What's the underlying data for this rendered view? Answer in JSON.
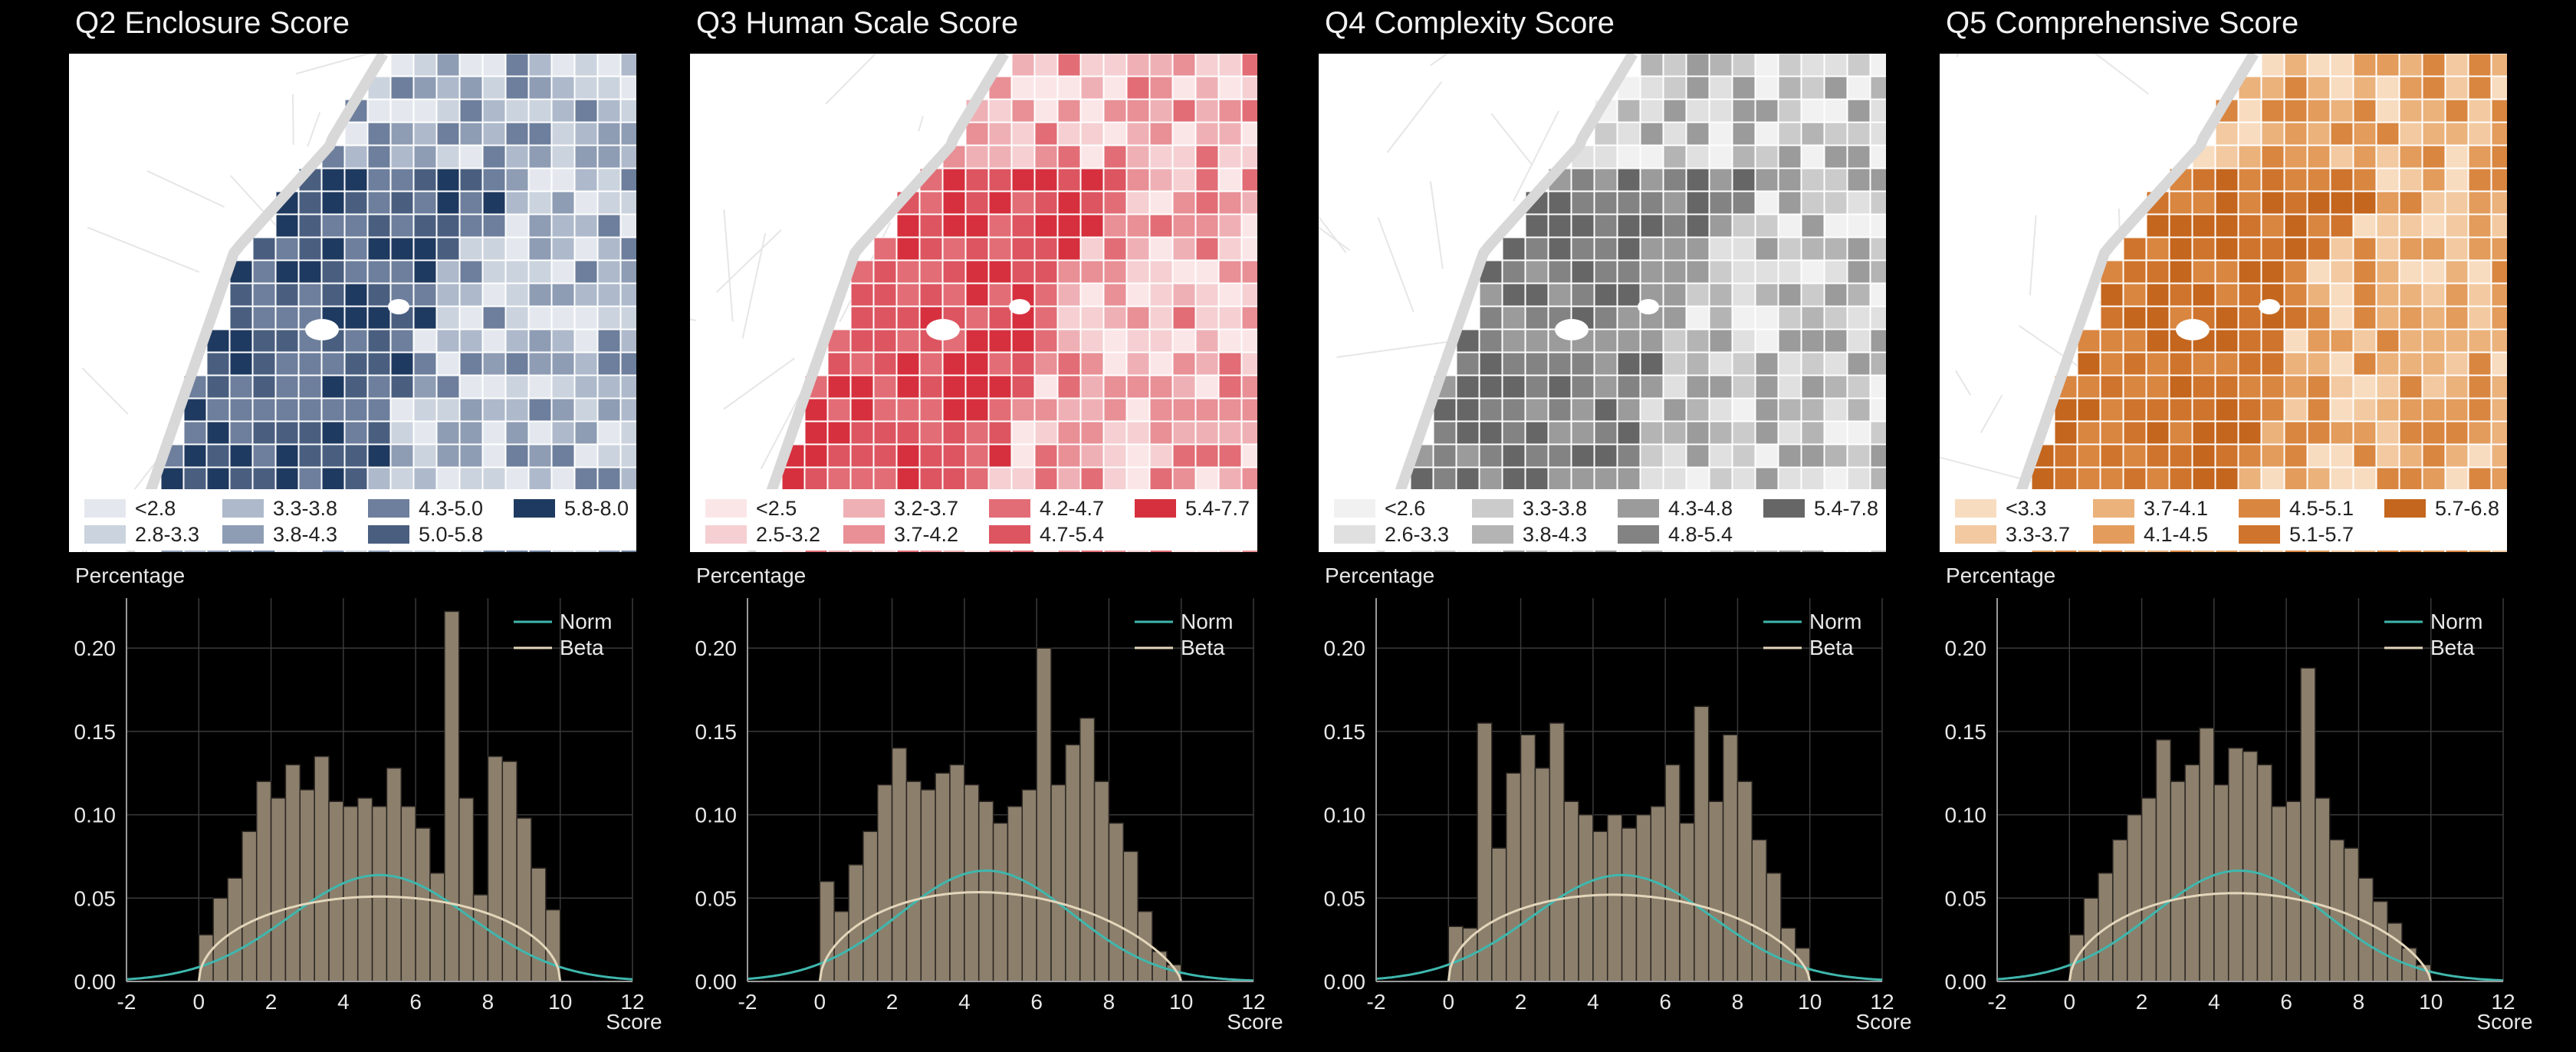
{
  "colors": {
    "norm": "#3fb7ad",
    "beta": "#e3d6bb",
    "bar_fill": "#8c7f6c",
    "bar_stroke": "#2a2622",
    "grid": "#3a3a3a",
    "axis": "#9a9a9a",
    "text": "#e8e8e8"
  },
  "panels": [
    {
      "title": "Q2 Enclosure Score",
      "map_palette": [
        "#e4e8ee",
        "#cbd3de",
        "#aebacb",
        "#8e9db4",
        "#6d7f9c",
        "#4a5f80",
        "#1f3a60"
      ],
      "legend": [
        "<2.8",
        "2.8-3.3",
        "3.3-3.8",
        "3.8-4.3",
        "4.3-5.0",
        "5.0-5.8",
        "5.8-8.0"
      ]
    },
    {
      "title": "Q3 Human Scale Score",
      "map_palette": [
        "#fbe6e7",
        "#f5cfd2",
        "#efb0b5",
        "#e98f96",
        "#e26d76",
        "#dc5560",
        "#d6303e"
      ],
      "legend": [
        "<2.5",
        "2.5-3.2",
        "3.2-3.7",
        "3.7-4.2",
        "4.2-4.7",
        "4.7-5.4",
        "5.4-7.7"
      ]
    },
    {
      "title": "Q4 Complexity Score",
      "map_palette": [
        "#f1f1f1",
        "#e0e0e0",
        "#cbcbcb",
        "#b4b4b4",
        "#9b9b9b",
        "#838383",
        "#666666"
      ],
      "legend": [
        "<2.6",
        "2.6-3.3",
        "3.3-3.8",
        "3.8-4.3",
        "4.3-4.8",
        "4.8-5.4",
        "5.4-7.8"
      ]
    },
    {
      "title": "Q5 Comprehensive Score",
      "map_palette": [
        "#f8dcc0",
        "#f2c9a0",
        "#ebb27c",
        "#e39c5c",
        "#d98641",
        "#cf742d",
        "#c4661e"
      ],
      "legend": [
        "<3.3",
        "3.3-3.7",
        "3.7-4.1",
        "4.1-4.5",
        "4.5-5.1",
        "5.1-5.7",
        "5.7-6.8"
      ]
    }
  ],
  "chart_data": [
    {
      "type": "bar",
      "ylabel": "Percentage",
      "xlabel": "Score",
      "xlim": [
        -2,
        12
      ],
      "ylim": [
        0,
        0.23
      ],
      "xticks": [
        "-2",
        "0",
        "2",
        "4",
        "6",
        "8",
        "10",
        "12"
      ],
      "yticks": [
        "0.00",
        "0.05",
        "0.10",
        "0.15",
        "0.20"
      ],
      "bin_edges_start": 0,
      "bin_width": 0.4,
      "values": [
        0.028,
        0.05,
        0.062,
        0.09,
        0.12,
        0.11,
        0.13,
        0.115,
        0.135,
        0.108,
        0.105,
        0.11,
        0.105,
        0.128,
        0.105,
        0.092,
        0.065,
        0.222,
        0.11,
        0.052,
        0.135,
        0.132,
        0.098,
        0.068,
        0.043
      ],
      "series": [
        {
          "name": "Norm",
          "mean": 5.0,
          "sd": 2.5
        },
        {
          "name": "Beta",
          "a": 1.5,
          "b": 1.5,
          "low": 0,
          "high": 10
        }
      ]
    },
    {
      "type": "bar",
      "ylabel": "Percentage",
      "xlabel": "Score",
      "xlim": [
        -2,
        12
      ],
      "ylim": [
        0,
        0.23
      ],
      "xticks": [
        "-2",
        "0",
        "2",
        "4",
        "6",
        "8",
        "10",
        "12"
      ],
      "yticks": [
        "0.00",
        "0.05",
        "0.10",
        "0.15",
        "0.20"
      ],
      "bin_edges_start": 0,
      "bin_width": 0.4,
      "values": [
        0.06,
        0.042,
        0.07,
        0.09,
        0.118,
        0.14,
        0.12,
        0.115,
        0.125,
        0.13,
        0.118,
        0.108,
        0.095,
        0.105,
        0.115,
        0.2,
        0.118,
        0.142,
        0.158,
        0.12,
        0.095,
        0.078,
        0.042,
        0.018,
        0.01
      ],
      "series": [
        {
          "name": "Norm",
          "mean": 4.6,
          "sd": 2.4
        },
        {
          "name": "Beta",
          "a": 1.55,
          "b": 1.7,
          "low": 0,
          "high": 10
        }
      ]
    },
    {
      "type": "bar",
      "ylabel": "Percentage",
      "xlabel": "Score",
      "xlim": [
        -2,
        12
      ],
      "ylim": [
        0,
        0.23
      ],
      "xticks": [
        "-2",
        "0",
        "2",
        "4",
        "6",
        "8",
        "10",
        "12"
      ],
      "yticks": [
        "0.00",
        "0.05",
        "0.10",
        "0.15",
        "0.20"
      ],
      "bin_edges_start": 0,
      "bin_width": 0.4,
      "values": [
        0.033,
        0.032,
        0.155,
        0.08,
        0.125,
        0.148,
        0.128,
        0.155,
        0.108,
        0.1,
        0.09,
        0.1,
        0.092,
        0.1,
        0.105,
        0.13,
        0.095,
        0.165,
        0.108,
        0.148,
        0.12,
        0.085,
        0.065,
        0.032,
        0.02
      ],
      "series": [
        {
          "name": "Norm",
          "mean": 4.8,
          "sd": 2.5
        },
        {
          "name": "Beta",
          "a": 1.5,
          "b": 1.6,
          "low": 0,
          "high": 10
        }
      ]
    },
    {
      "type": "bar",
      "ylabel": "Percentage",
      "xlabel": "Score",
      "xlim": [
        -2,
        12
      ],
      "ylim": [
        0,
        0.23
      ],
      "xticks": [
        "-2",
        "0",
        "2",
        "4",
        "6",
        "8",
        "10",
        "12"
      ],
      "yticks": [
        "0.00",
        "0.05",
        "0.10",
        "0.15",
        "0.20"
      ],
      "bin_edges_start": 0,
      "bin_width": 0.4,
      "values": [
        0.028,
        0.05,
        0.065,
        0.085,
        0.1,
        0.11,
        0.145,
        0.12,
        0.13,
        0.152,
        0.118,
        0.14,
        0.138,
        0.13,
        0.105,
        0.108,
        0.188,
        0.11,
        0.085,
        0.08,
        0.062,
        0.048,
        0.035,
        0.02,
        0.01
      ],
      "series": [
        {
          "name": "Norm",
          "mean": 4.7,
          "sd": 2.4
        },
        {
          "name": "Beta",
          "a": 1.55,
          "b": 1.65,
          "low": 0,
          "high": 10
        }
      ]
    }
  ]
}
